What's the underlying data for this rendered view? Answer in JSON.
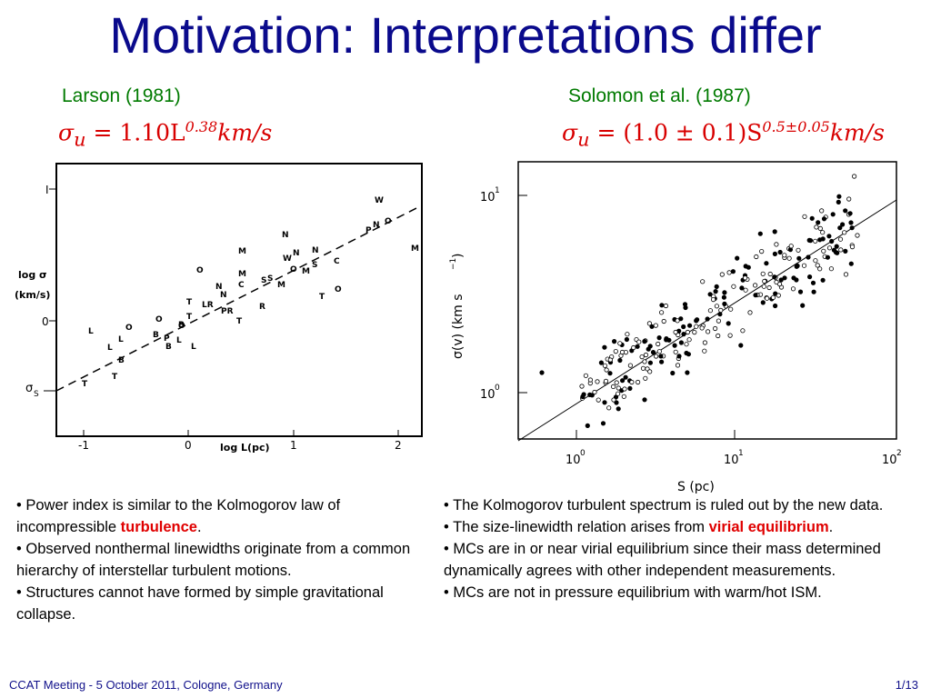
{
  "title": "Motivation: Interpretations differ",
  "left": {
    "reference": "Larson (1981)",
    "formula_lhs": "σ",
    "formula_sub": "u",
    "formula_coef": " = 1.10L",
    "formula_exp": "0.38",
    "formula_unit": "km/s",
    "plot": {
      "y_ticks": [
        "I",
        "0"
      ],
      "y_label_1": "log σ",
      "y_label_2": "(km/s)",
      "y_marker": "σ",
      "y_marker_sub": "S",
      "x_ticks": [
        "-1",
        "0",
        "1",
        "2"
      ],
      "x_label": "log L(pc)"
    },
    "bullets": [
      {
        "pre": "• Power index is similar to the Kolmogorov law of incompressible ",
        "hl": "turbulence",
        "post": "."
      },
      {
        "pre": "• Observed nonthermal linewidths originate from a common hierarchy of interstellar turbulent motions.",
        "hl": "",
        "post": ""
      },
      {
        "pre": "• Structures cannot have formed by simple gravitational collapse.",
        "hl": "",
        "post": ""
      }
    ]
  },
  "right": {
    "reference": "Solomon et al. (1987)",
    "formula_lhs": "σ",
    "formula_sub": "u",
    "formula_coef": " = (1.0 ± 0.1)S",
    "formula_exp": "0.5±0.05",
    "formula_unit": "km/s",
    "plot": {
      "y_ticks": [
        "10",
        "10"
      ],
      "y_tick_exps": [
        "1",
        "0"
      ],
      "y_label": "σ(v)  (km s",
      "y_label_exp": "−1",
      "y_label_end": ")",
      "x_ticks": [
        "10",
        "10",
        "10"
      ],
      "x_tick_exps": [
        "0",
        "1",
        "2"
      ],
      "x_label": "S  (pc)"
    },
    "bullets": [
      {
        "pre": "• The Kolmogorov turbulent spectrum is ruled out by the new data.",
        "hl": "",
        "post": ""
      },
      {
        "pre": "• The size-linewidth relation arises from ",
        "hl": "virial equilibrium",
        "post": "."
      },
      {
        "pre": "• MCs are in or near virial equilibrium since their mass determined dynamically agrees with other independent measurements.",
        "hl": "",
        "post": ""
      },
      {
        "pre": "• MCs are not in pressure equilibrium with warm/hot ISM.",
        "hl": "",
        "post": ""
      }
    ]
  },
  "footer": {
    "left": "CCAT Meeting - 5 October 2011, Cologne, Germany",
    "right": "1/13"
  }
}
